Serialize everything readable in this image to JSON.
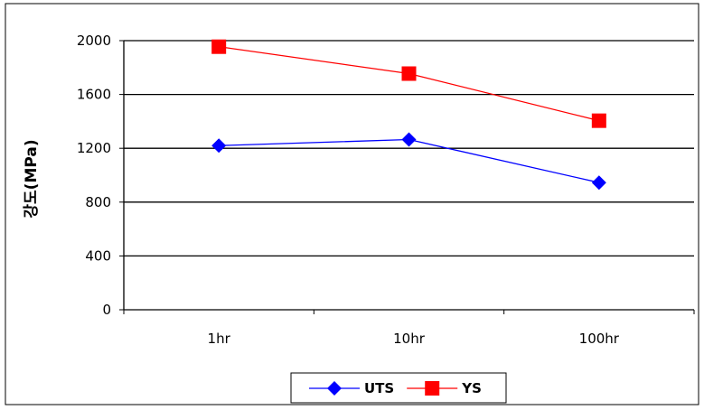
{
  "chart_data": {
    "type": "line",
    "title": "",
    "xlabel": "",
    "ylabel": "강도(MPa)",
    "categories": [
      "1hr",
      "10hr",
      "100hr"
    ],
    "ylim": [
      0,
      2000
    ],
    "yticks": [
      0,
      400,
      800,
      1200,
      1600,
      2000
    ],
    "grid": true,
    "legend_position": "bottom",
    "series": [
      {
        "name": "UTS",
        "values": [
          1220,
          1265,
          945
        ],
        "color": "#0000ff",
        "marker": "diamond"
      },
      {
        "name": "YS",
        "values": [
          1955,
          1755,
          1405
        ],
        "color": "#ff0000",
        "marker": "square"
      }
    ]
  }
}
